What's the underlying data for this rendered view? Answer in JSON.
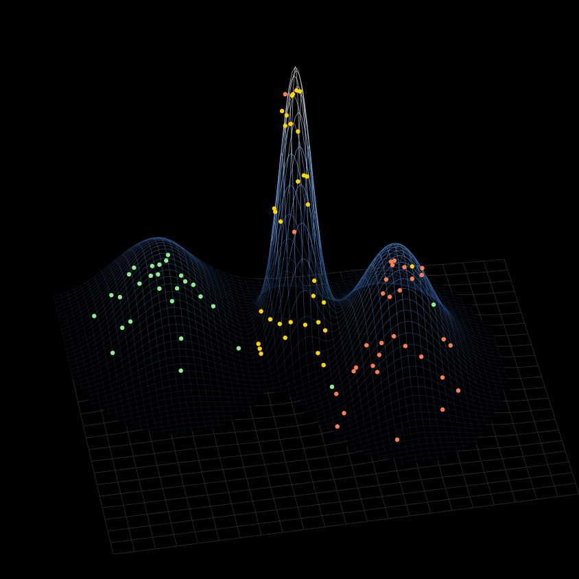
{
  "chart_data": {
    "type": "surface_scatter3d",
    "surface": {
      "peaks": [
        {
          "x": 0.22,
          "y": 0.15,
          "height": 1.15,
          "spread_x": 0.09,
          "spread_y": 0.16
        },
        {
          "x": 0.5,
          "y": 0.25,
          "height": 3.93,
          "spread_x": 0.035,
          "spread_y": 0.07
        },
        {
          "x": 0.7,
          "y": 0.4,
          "height": 1.74,
          "spread_x": 0.08,
          "spread_y": 0.14
        }
      ]
    },
    "series": [
      {
        "color": "#90ee90",
        "x": [
          0.233,
          0.158,
          0.147,
          0.198,
          0.214,
          0.229,
          0.211,
          0.195,
          0.17,
          0.262,
          0.271,
          0.289,
          0.253,
          0.214,
          0.108,
          0.127,
          0.305,
          0.242,
          0.333,
          0.07,
          0.15,
          0.132,
          0.255,
          0.1,
          0.237,
          0.373,
          0.78,
          0.55
        ],
        "y": [
          0.15,
          0.15,
          0.15,
          0.15,
          0.15,
          0.15,
          0.15,
          0.15,
          0.15,
          0.15,
          0.15,
          0.15,
          0.15,
          0.15,
          0.15,
          0.15,
          0.15,
          0.15,
          0.15,
          0.15,
          0.15,
          0.15,
          0.2,
          0.23,
          0.325,
          0.26,
          0.4,
          0.45
        ],
        "z": [
          1.05,
          0.91,
          0.82,
          0.91,
          0.92,
          0.97,
          0.78,
          0.77,
          0.67,
          0.73,
          0.64,
          0.58,
          0.55,
          0.57,
          0.54,
          0.5,
          0.4,
          0.37,
          0.24,
          0.26,
          0.13,
          0.05,
          0,
          0,
          0,
          0,
          0.86,
          0
        ]
      },
      {
        "color": "#ffd700",
        "x": [
          0.494,
          0.502,
          0.509,
          0.492,
          0.47,
          0.48,
          0.489,
          0.477,
          0.505,
          0.518,
          0.525,
          0.505,
          0.527,
          0.453,
          0.455,
          0.467,
          0.541,
          0.539,
          0.562,
          0.424,
          0.444,
          0.465,
          0.489,
          0.521,
          0.55,
          0.565,
          0.477,
          0.418,
          0.418,
          0.418,
          0.54,
          0.545,
          0.733
        ],
        "y": [
          0.25,
          0.25,
          0.25,
          0.25,
          0.25,
          0.25,
          0.25,
          0.25,
          0.25,
          0.25,
          0.25,
          0.25,
          0.25,
          0.25,
          0.25,
          0.25,
          0.25,
          0.25,
          0.25,
          0.25,
          0.25,
          0.25,
          0.25,
          0.25,
          0.25,
          0.25,
          0.25,
          0.25,
          0.27,
          0.29,
          0.31,
          0.36,
          0.4
        ],
        "z": [
          3.59,
          3.64,
          3.62,
          3.57,
          3.36,
          3.29,
          3.16,
          3.14,
          3.04,
          2.39,
          2.37,
          2.31,
          1.96,
          1.95,
          1.9,
          1.75,
          0.84,
          0.62,
          0.51,
          0.47,
          0.34,
          0.26,
          0.27,
          0.21,
          0.23,
          0.1,
          0.05,
          0,
          0,
          0,
          0,
          0,
          1.45
        ]
      },
      {
        "color": "#ff7f50",
        "x": [
          0.477,
          0.497,
          0.687,
          0.694,
          0.69,
          0.716,
          0.755,
          0.754,
          0.733,
          0.676,
          0.706,
          0.669,
          0.684,
          0.693,
          0.633,
          0.666,
          0.718,
          0.802,
          0.817,
          0.753,
          0.661,
          0.647,
          0.61,
          0.605,
          0.655,
          0.79,
          0.815,
          0.77,
          0.555,
          0.56,
          0.538,
          0.656
        ],
        "y": [
          0.25,
          0.25,
          0.4,
          0.4,
          0.4,
          0.4,
          0.4,
          0.4,
          0.4,
          0.4,
          0.4,
          0.4,
          0.4,
          0.4,
          0.4,
          0.4,
          0.4,
          0.4,
          0.4,
          0.4,
          0.4,
          0.4,
          0.4,
          0.4,
          0.41,
          0.46,
          0.52,
          0.59,
          0.48,
          0.56,
          0.61,
          0.69
        ],
        "z": [
          3.6,
          1.58,
          1.55,
          1.56,
          1.5,
          1.45,
          1.41,
          1.31,
          1.27,
          1.3,
          1.12,
          1.1,
          1.04,
          0.46,
          0.37,
          0.38,
          0.3,
          0.34,
          0.24,
          0.12,
          0.21,
          0.06,
          0.06,
          0.01,
          0,
          0,
          0,
          0,
          0,
          0,
          0,
          0
        ]
      }
    ]
  }
}
